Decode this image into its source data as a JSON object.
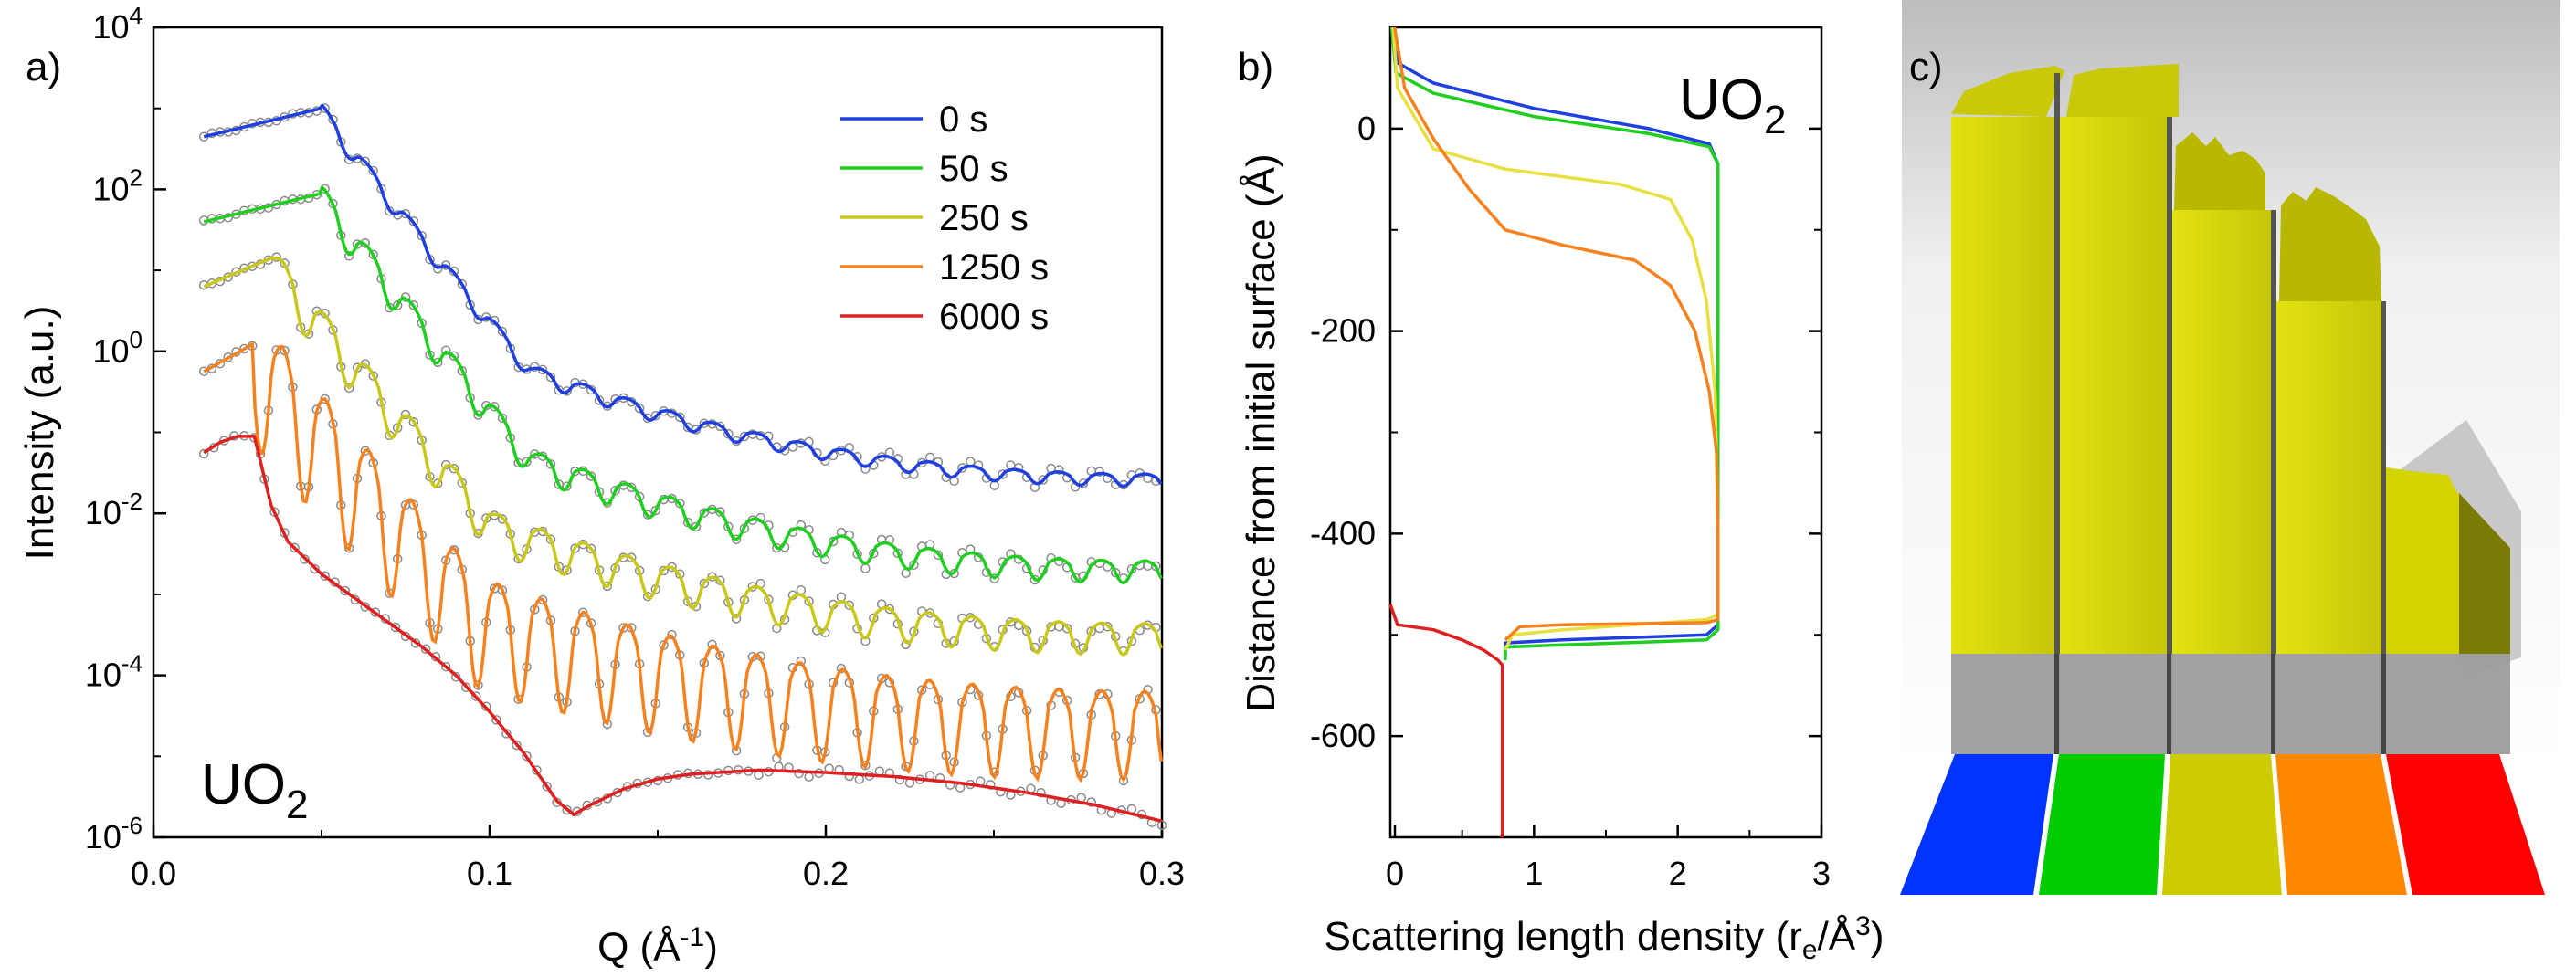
{
  "figure": {
    "panel_letters": [
      "a)",
      "b)",
      "c)"
    ]
  },
  "chart_data": [
    {
      "panel": "a)",
      "type": "line",
      "title": "",
      "xlabel": "Q (Å",
      "xlabel_sup": "-1",
      "xlabel_tail": ")",
      "ylabel": "Intensity (a.u.)",
      "xlim": [
        0.0,
        0.3
      ],
      "ylim_log10": [
        -6,
        4
      ],
      "yscale": "log",
      "x_ticks": [
        "0.0",
        "0.1",
        "0.2",
        "0.3"
      ],
      "x_tick_values": [
        0.0,
        0.1,
        0.2,
        0.3
      ],
      "y_ticks": [
        {
          "value": -6,
          "base": "10",
          "exp": "-6"
        },
        {
          "value": -4,
          "base": "10",
          "exp": "-4"
        },
        {
          "value": -2,
          "base": "10",
          "exp": "-2"
        },
        {
          "value": 0,
          "base": "10",
          "exp": "0"
        },
        {
          "value": 2,
          "base": "10",
          "exp": "2"
        },
        {
          "value": 4,
          "base": "10",
          "exp": "4"
        }
      ],
      "annotation": {
        "text": "UO",
        "sub": "2"
      },
      "legend_position": "top-right",
      "q_start": 0.015,
      "q_end": 0.3,
      "data_marker": "open grey circles (measured data)",
      "series": [
        {
          "name": "0 s",
          "color": "#1f3fe0",
          "offset_log10": 2.65,
          "critical_q": 0.05,
          "thickness_A": 500,
          "osc_amp": 0.18,
          "decay_slope": 3.0
        },
        {
          "name": "50 s",
          "color": "#1fcf1f",
          "offset_log10": 1.6,
          "critical_q": 0.05,
          "thickness_A": 500,
          "osc_amp": 0.32,
          "decay_slope": 3.0
        },
        {
          "name": "250 s",
          "color": "#c8c81a",
          "offset_log10": 0.8,
          "critical_q": 0.035,
          "thickness_A": 500,
          "osc_amp": 0.45,
          "decay_slope": 2.9
        },
        {
          "name": "1250 s",
          "color": "#f5821f",
          "offset_log10": -0.25,
          "critical_q": 0.03,
          "thickness_A": 500,
          "osc_amp": 0.8,
          "decay_slope": 3.0
        },
        {
          "name": "6000 s",
          "color": "#e02020",
          "offset_log10": -1.25,
          "critical_q": 0.03,
          "thickness_A": 500,
          "osc_amp": 0.0,
          "decay_slope": 0
        }
      ],
      "red_curve_points": [
        [
          0.015,
          -1.25
        ],
        [
          0.02,
          -1.12
        ],
        [
          0.025,
          -1.05
        ],
        [
          0.03,
          -1.05
        ],
        [
          0.035,
          -1.9
        ],
        [
          0.04,
          -2.35
        ],
        [
          0.05,
          -2.75
        ],
        [
          0.06,
          -3.05
        ],
        [
          0.07,
          -3.35
        ],
        [
          0.08,
          -3.65
        ],
        [
          0.09,
          -4.0
        ],
        [
          0.1,
          -4.45
        ],
        [
          0.11,
          -4.95
        ],
        [
          0.12,
          -5.55
        ],
        [
          0.125,
          -5.72
        ],
        [
          0.13,
          -5.6
        ],
        [
          0.14,
          -5.4
        ],
        [
          0.15,
          -5.28
        ],
        [
          0.16,
          -5.22
        ],
        [
          0.18,
          -5.17
        ],
        [
          0.2,
          -5.2
        ],
        [
          0.22,
          -5.25
        ],
        [
          0.24,
          -5.33
        ],
        [
          0.26,
          -5.45
        ],
        [
          0.28,
          -5.6
        ],
        [
          0.3,
          -5.8
        ]
      ],
      "final_levels": [
        -1.55,
        -2.65,
        -3.45,
        -4.45,
        -5.8
      ]
    },
    {
      "panel": "b)",
      "type": "line",
      "title": "",
      "xlabel": "Scattering length density (r",
      "xlabel_sub": "e",
      "xlabel_mid": "/Å",
      "xlabel_sup": "3",
      "xlabel_tail": ")",
      "ylabel": "Distance from initial surface (Å)",
      "xlim": [
        0,
        3
      ],
      "ylim": [
        -700,
        100
      ],
      "x_ticks": [
        "0",
        "1",
        "2",
        "3"
      ],
      "x_tick_values": [
        0,
        1,
        2,
        3
      ],
      "y_ticks": [
        "0",
        "-200",
        "-400",
        "-600"
      ],
      "y_tick_values": [
        0,
        -200,
        -400,
        -600
      ],
      "annotation": {
        "text": "UO",
        "sub": "2"
      },
      "series": [
        {
          "name": "0 s",
          "color": "#1f3fe0",
          "points": [
            [
              0.02,
              100
            ],
            [
              0.05,
              65
            ],
            [
              0.3,
              45
            ],
            [
              1.0,
              20
            ],
            [
              1.8,
              0
            ],
            [
              2.22,
              -15
            ],
            [
              2.28,
              -35
            ],
            [
              2.28,
              -490
            ],
            [
              2.2,
              -500
            ],
            [
              1.2,
              -505
            ],
            [
              0.8,
              -508
            ],
            [
              0.8,
              -520
            ]
          ]
        },
        {
          "name": "50 s",
          "color": "#1fcf1f",
          "points": [
            [
              0.01,
              100
            ],
            [
              0.04,
              55
            ],
            [
              0.3,
              35
            ],
            [
              1.0,
              12
            ],
            [
              1.8,
              -5
            ],
            [
              2.22,
              -18
            ],
            [
              2.28,
              -35
            ],
            [
              2.28,
              -495
            ],
            [
              2.2,
              -505
            ],
            [
              1.2,
              -510
            ],
            [
              0.8,
              -512
            ],
            [
              0.8,
              -525
            ]
          ]
        },
        {
          "name": "250 s",
          "color": "#e8e040",
          "points": [
            [
              0.02,
              100
            ],
            [
              0.05,
              40
            ],
            [
              0.3,
              -20
            ],
            [
              0.8,
              -40
            ],
            [
              1.6,
              -55
            ],
            [
              1.95,
              -70
            ],
            [
              2.1,
              -110
            ],
            [
              2.2,
              -170
            ],
            [
              2.26,
              -260
            ],
            [
              2.28,
              -400
            ],
            [
              2.28,
              -480
            ],
            [
              2.2,
              -485
            ],
            [
              1.2,
              -495
            ],
            [
              0.85,
              -500
            ],
            [
              0.8,
              -515
            ]
          ]
        },
        {
          "name": "1250 s",
          "color": "#f5821f",
          "points": [
            [
              0.03,
              100
            ],
            [
              0.1,
              40
            ],
            [
              0.3,
              -10
            ],
            [
              0.55,
              -60
            ],
            [
              0.8,
              -100
            ],
            [
              1.2,
              -115
            ],
            [
              1.7,
              -130
            ],
            [
              1.95,
              -155
            ],
            [
              2.12,
              -200
            ],
            [
              2.22,
              -260
            ],
            [
              2.27,
              -320
            ],
            [
              2.28,
              -400
            ],
            [
              2.28,
              -485
            ],
            [
              2.2,
              -488
            ],
            [
              1.2,
              -490
            ],
            [
              0.9,
              -492
            ],
            [
              0.8,
              -505
            ]
          ]
        },
        {
          "name": "6000 s",
          "color": "#e02020",
          "points": [
            [
              0.0,
              -470
            ],
            [
              0.05,
              -490
            ],
            [
              0.3,
              -495
            ],
            [
              0.5,
              -505
            ],
            [
              0.65,
              -515
            ],
            [
              0.75,
              -525
            ],
            [
              0.78,
              -530
            ],
            [
              0.78,
              -700
            ]
          ]
        }
      ]
    },
    {
      "panel": "c)",
      "type": "other",
      "description_colors": [
        "#0033ff",
        "#00cc00",
        "#cccc00",
        "#ff8800",
        "#ff0000"
      ],
      "top_color": "#d6d600",
      "base_color": "#9c9c9c"
    }
  ]
}
